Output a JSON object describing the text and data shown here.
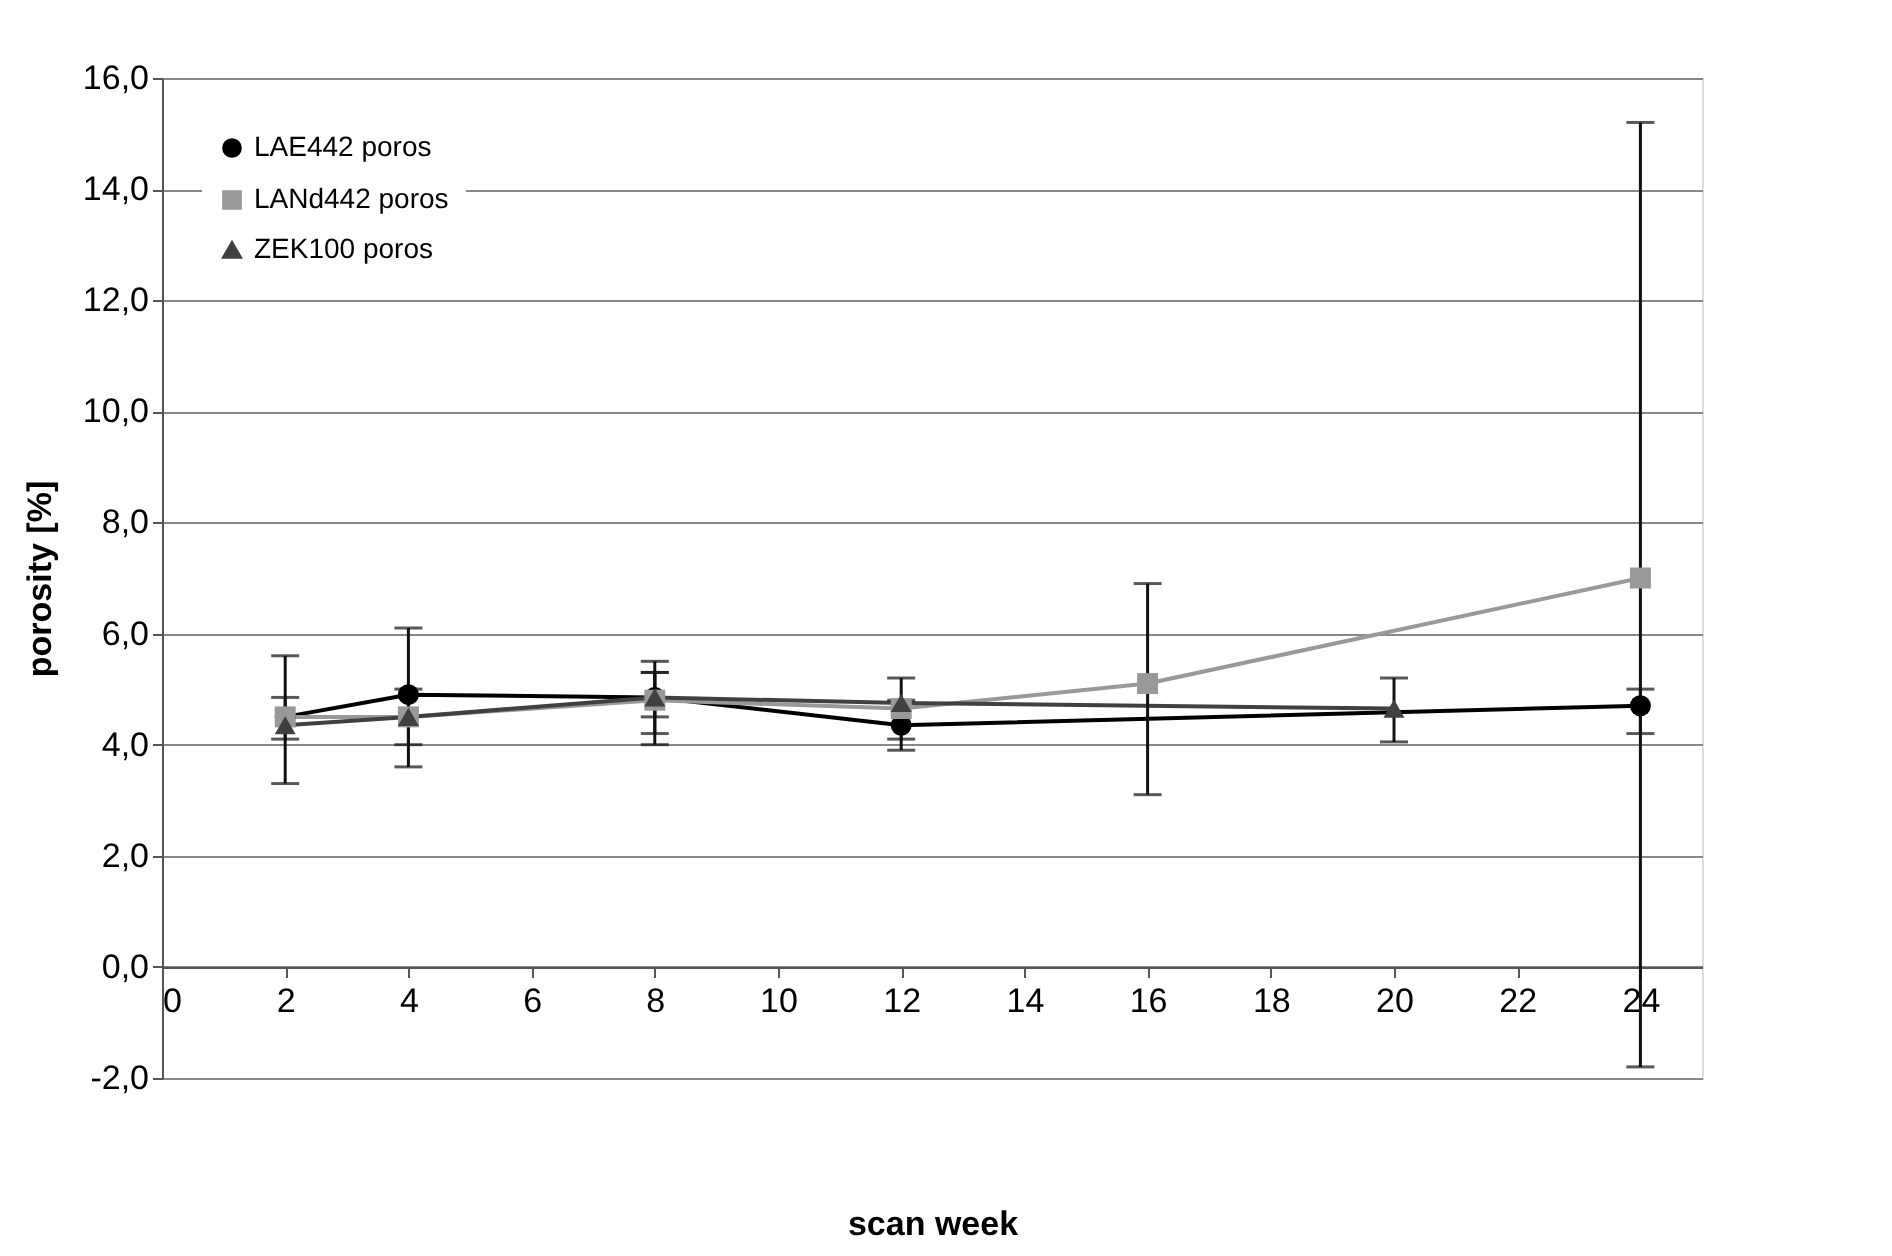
{
  "chart_data": {
    "type": "line",
    "xlabel": "scan week",
    "ylabel": "porosity [%]",
    "xlim": [
      0,
      25
    ],
    "xticks": [
      0,
      2,
      4,
      6,
      8,
      10,
      12,
      14,
      16,
      18,
      20,
      22,
      24
    ],
    "ylim": [
      -2,
      16
    ],
    "yticks": [
      {
        "value": -2,
        "label": "-2,0"
      },
      {
        "value": 0,
        "label": "0,0"
      },
      {
        "value": 2,
        "label": "2,0"
      },
      {
        "value": 4,
        "label": "4,0"
      },
      {
        "value": 6,
        "label": "6,0"
      },
      {
        "value": 8,
        "label": "8,0"
      },
      {
        "value": 10,
        "label": "10,0"
      },
      {
        "value": 12,
        "label": "12,0"
      },
      {
        "value": 14,
        "label": "14,0"
      },
      {
        "value": 16,
        "label": "16,0"
      }
    ],
    "grid": "y",
    "legend": "top left",
    "line_style": "solid",
    "series": [
      {
        "name": "LAE442 poros",
        "color": "#000000",
        "marker": "circle",
        "x": [
          2,
          4,
          8,
          12,
          24
        ],
        "values": [
          4.5,
          4.9,
          4.85,
          4.35,
          4.7
        ],
        "errors": [
          [
            3.3,
            5.6
          ],
          [
            3.6,
            6.1
          ],
          [
            4.2,
            5.5
          ],
          [
            3.9,
            4.8
          ],
          [
            4.2,
            5.0
          ]
        ]
      },
      {
        "name": "LANd442 poros",
        "color": "#999999",
        "marker": "square",
        "x": [
          2,
          4,
          8,
          12,
          16,
          24
        ],
        "values": [
          4.5,
          4.5,
          4.8,
          4.65,
          5.1,
          7.0
        ],
        "errors": [
          [
            4.1,
            4.85
          ],
          [
            4.0,
            5.0
          ],
          [
            4.5,
            5.3
          ],
          [
            4.1,
            5.2
          ],
          [
            3.1,
            6.9
          ],
          [
            -1.8,
            15.2
          ]
        ]
      },
      {
        "name": "ZEK100 poros",
        "color": "#404040",
        "marker": "triangle",
        "x": [
          2,
          4,
          8,
          12,
          20
        ],
        "values": [
          4.35,
          4.5,
          4.85,
          4.75,
          4.65
        ],
        "errors": [
          null,
          null,
          [
            4.0,
            5.3
          ],
          null,
          [
            4.05,
            5.2
          ]
        ]
      }
    ]
  }
}
